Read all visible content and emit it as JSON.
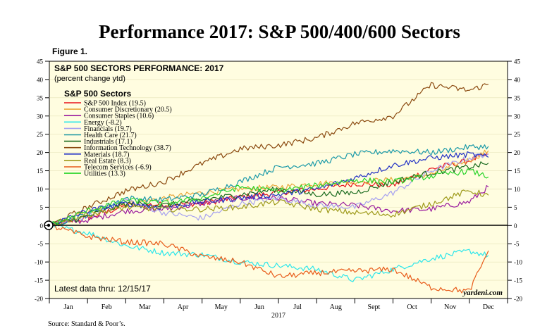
{
  "page": {
    "title": "Performance 2017: S&P 500/400/600 Sectors",
    "figure_label": "Figure 1.",
    "source": "Source: Standard & Poor’s."
  },
  "chart_data": {
    "type": "line",
    "title": "S&P 500 SECTORS PERFORMANCE: 2017",
    "subtitle": "(percent change ytd)",
    "legend_title": "S&P 500 Sectors",
    "legend_position": "top-left",
    "annotation_latest": "Latest data thru: 12/15/17",
    "watermark": "yardeni.com",
    "xlabel": "2017",
    "x_tick_labels": [
      "Jan",
      "Feb",
      "Mar",
      "Apr",
      "May",
      "Jun",
      "Jul",
      "Aug",
      "Sept",
      "Oct",
      "Nov",
      "Dec"
    ],
    "y_ticks": [
      -20,
      -15,
      -10,
      -5,
      0,
      5,
      10,
      15,
      20,
      25,
      30,
      35,
      40,
      45
    ],
    "ylim": [
      -20,
      45
    ],
    "y_axis_sides": [
      "left",
      "right"
    ],
    "plot_background": "#fffde0",
    "months": [
      0,
      1,
      2,
      3,
      4,
      5,
      6,
      7,
      8,
      9,
      10,
      11,
      11.5
    ],
    "series": [
      {
        "name": "S&P 500 Index (19.5)",
        "color": "#e8131b",
        "values": [
          0,
          2.0,
          5.5,
          5.8,
          6.0,
          7.8,
          9.0,
          10.0,
          11.5,
          11.0,
          15.5,
          17.8,
          19.5
        ]
      },
      {
        "name": "Consumer Discretionary (20.5)",
        "color": "#e8a83c",
        "values": [
          0,
          3.5,
          6.0,
          7.5,
          9.0,
          10.0,
          10.5,
          11.5,
          12.0,
          12.5,
          14.0,
          18.0,
          20.5
        ]
      },
      {
        "name": "Consumer Staples (10.6)",
        "color": "#9a1a9e",
        "values": [
          0,
          1.5,
          4.0,
          4.5,
          6.0,
          7.5,
          7.5,
          6.0,
          5.5,
          4.0,
          4.5,
          6.5,
          10.6
        ]
      },
      {
        "name": "Energy (-8.2)",
        "color": "#2ee6ea",
        "values": [
          0,
          -2.0,
          -5.5,
          -7.5,
          -8.0,
          -10.0,
          -11.0,
          -12.0,
          -15.0,
          -12.0,
          -9.0,
          -7.0,
          -8.2
        ]
      },
      {
        "name": "Financials (19.7)",
        "color": "#a7a2f0",
        "values": [
          0,
          2.5,
          7.0,
          3.5,
          2.0,
          6.0,
          7.5,
          5.5,
          5.0,
          9.0,
          15.0,
          18.5,
          19.7
        ]
      },
      {
        "name": "Health Care (21.7)",
        "color": "#1a99a8",
        "values": [
          0,
          3.0,
          7.5,
          7.0,
          8.5,
          12.0,
          16.0,
          17.0,
          19.5,
          20.5,
          20.0,
          21.5,
          21.7
        ]
      },
      {
        "name": "Industrials (17.1)",
        "color": "#1a6a1e",
        "values": [
          0,
          2.5,
          6.0,
          5.5,
          7.0,
          8.5,
          10.0,
          8.5,
          9.0,
          12.0,
          14.5,
          16.0,
          17.1
        ]
      },
      {
        "name": "Information Technology (38.7)",
        "color": "#8b4a10",
        "values": [
          0,
          5.0,
          9.5,
          12.0,
          17.0,
          21.0,
          22.0,
          24.0,
          28.0,
          30.0,
          38.5,
          37.0,
          38.7
        ]
      },
      {
        "name": "Materials (18.7)",
        "color": "#2130c4",
        "values": [
          0,
          4.0,
          6.0,
          5.0,
          6.5,
          7.5,
          8.5,
          10.0,
          13.0,
          16.5,
          18.5,
          19.5,
          18.7
        ]
      },
      {
        "name": "Real Estate (8.3)",
        "color": "#9e9a1a",
        "values": [
          0,
          3.0,
          5.0,
          4.5,
          4.5,
          5.0,
          6.5,
          4.5,
          3.5,
          3.0,
          6.0,
          9.5,
          8.3
        ]
      },
      {
        "name": "Telecom Services (-6.9)",
        "color": "#e85c1a",
        "values": [
          0,
          -3.0,
          -4.5,
          -5.0,
          -8.5,
          -10.0,
          -14.0,
          -13.0,
          -12.5,
          -12.0,
          -17.0,
          -18.0,
          -6.9
        ]
      },
      {
        "name": "Utilities (13.3)",
        "color": "#2ad42a",
        "values": [
          0,
          4.0,
          7.0,
          6.0,
          7.5,
          10.5,
          9.5,
          11.0,
          12.5,
          12.0,
          13.5,
          15.0,
          13.3
        ]
      }
    ]
  }
}
